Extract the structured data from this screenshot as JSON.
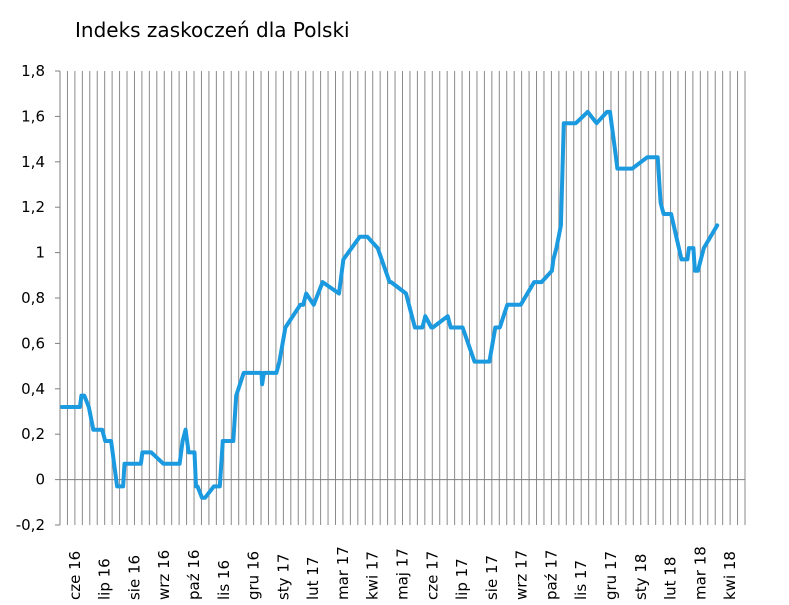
{
  "chart_data": {
    "type": "line",
    "title": "Indeks zaskoczeń dla Polski",
    "xlabel": "",
    "ylabel": "",
    "ylim": [
      -0.2,
      1.8
    ],
    "yticks": [
      -0.2,
      0,
      0.2,
      0.4,
      0.6,
      0.8,
      1,
      1.2,
      1.4,
      1.6,
      1.8
    ],
    "ytick_labels": [
      "-0,2",
      "0",
      "0,2",
      "0,4",
      "0,6",
      "0,8",
      "1",
      "1,2",
      "1,4",
      "1,6",
      "1,8"
    ],
    "categories": [
      "cze 16",
      "lip 16",
      "sie 16",
      "wrz 16",
      "paź 16",
      "lis 16",
      "gru 16",
      "sty 17",
      "lut 17",
      "mar 17",
      "kwi 17",
      "maj 17",
      "cze 17",
      "lip 17",
      "sie 17",
      "wrz 17",
      "paź 17",
      "lis 17",
      "gru 17",
      "sty 18",
      "lut 18",
      "mar 18",
      "kwi 18"
    ],
    "grid": "vertical",
    "line_color": "#1b9ae0",
    "series": [
      {
        "name": "",
        "x": [
          0.0,
          0.6,
          0.65,
          0.75,
          0.9,
          1.05,
          1.35,
          1.45,
          1.65,
          1.85,
          2.05,
          2.1,
          2.65,
          2.7,
          3.0,
          3.4,
          3.95,
          4.05,
          4.15,
          4.25,
          4.45,
          4.5,
          4.55,
          4.7,
          4.8,
          5.1,
          5.3,
          5.4,
          5.75,
          5.85,
          6.1,
          6.3,
          6.7,
          6.72,
          6.78,
          7.0,
          7.2,
          7.3,
          7.5,
          8.0,
          8.1,
          8.2,
          8.45,
          8.75,
          9.3,
          9.45,
          10.0,
          10.25,
          10.6,
          11.0,
          11.05,
          11.55,
          11.85,
          12.1,
          12.2,
          12.4,
          12.45,
          12.95,
          13.05,
          13.25,
          13.45,
          13.85,
          14.15,
          14.35,
          14.55,
          14.7,
          14.95,
          15.2,
          15.3,
          15.4,
          15.85,
          16.0,
          16.1,
          16.45,
          16.5,
          16.6,
          16.75,
          16.85,
          17.05,
          17.25,
          17.65,
          17.95,
          18.3,
          18.4,
          18.55,
          18.65,
          18.7,
          18.85,
          19.15,
          19.65,
          20.0,
          20.1,
          20.2,
          20.35,
          20.45,
          20.8,
          21.0,
          21.05,
          21.2,
          21.25,
          21.35,
          21.55,
          22.0
        ],
        "y": [
          0.32,
          0.32,
          0.37,
          0.37,
          0.32,
          0.22,
          0.22,
          0.17,
          0.17,
          -0.03,
          -0.03,
          0.07,
          0.07,
          0.12,
          0.12,
          0.07,
          0.07,
          0.17,
          0.22,
          0.12,
          0.12,
          -0.03,
          -0.03,
          -0.08,
          -0.08,
          -0.03,
          -0.03,
          0.17,
          0.17,
          0.37,
          0.47,
          0.47,
          0.47,
          0.42,
          0.47,
          0.47,
          0.47,
          0.52,
          0.67,
          0.77,
          0.77,
          0.82,
          0.77,
          0.87,
          0.82,
          0.97,
          1.07,
          1.07,
          1.02,
          0.87,
          0.87,
          0.82,
          0.67,
          0.67,
          0.72,
          0.67,
          0.67,
          0.72,
          0.67,
          0.67,
          0.67,
          0.52,
          0.52,
          0.52,
          0.67,
          0.67,
          0.77,
          0.77,
          0.77,
          0.77,
          0.87,
          0.87,
          0.87,
          0.92,
          0.97,
          1.02,
          1.12,
          1.57,
          1.57,
          1.57,
          1.62,
          1.57,
          1.62,
          1.62,
          1.47,
          1.37,
          1.37,
          1.37,
          1.37,
          1.42,
          1.42,
          1.22,
          1.17,
          1.17,
          1.17,
          0.97,
          0.97,
          1.02,
          1.02,
          0.92,
          0.92,
          1.02,
          1.12
        ]
      }
    ]
  }
}
